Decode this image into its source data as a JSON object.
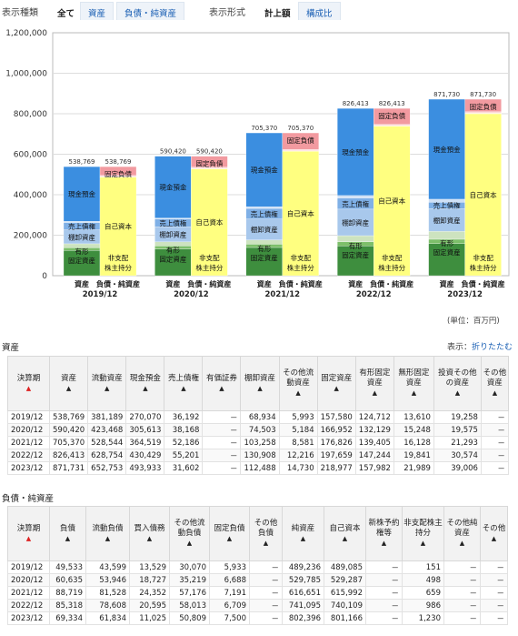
{
  "topbar": {
    "kind_label": "表示種類",
    "kind_tabs": [
      "全て",
      "資産",
      "負債・純資産"
    ],
    "format_label": "表示形式",
    "format_tabs": [
      "計上額",
      "構成比"
    ]
  },
  "unit_label": "(単位：百万円)",
  "chart_data": {
    "type": "bar",
    "subtype": "stacked",
    "ylim": [
      0,
      1200000
    ],
    "yticks": [
      "0",
      "200,000",
      "400,000",
      "600,000",
      "800,000",
      "1,000,000",
      "1,200,000"
    ],
    "bar_labels": [
      "資産",
      "負債・純資産"
    ],
    "periods": [
      "2019/12",
      "2020/12",
      "2021/12",
      "2022/12",
      "2023/12"
    ],
    "totals": [
      "538,769",
      "590,420",
      "705,370",
      "826,413",
      "871,730"
    ],
    "asset_series": [
      {
        "name": "有形固定資産",
        "values": [
          124712,
          132129,
          139405,
          147244,
          157982
        ],
        "color": "#3e8e3e"
      },
      {
        "name": "無形固定資産",
        "values": [
          13610,
          15248,
          16128,
          19841,
          21989
        ],
        "color": "#7dbf6a"
      },
      {
        "name": "投資その他の資産",
        "values": [
          19258,
          19575,
          21293,
          30574,
          39006
        ],
        "color": "#cde3bf"
      },
      {
        "name": "棚卸資産",
        "values": [
          68934,
          74503,
          103258,
          130908,
          112488
        ],
        "color": "#a8c8ec"
      },
      {
        "name": "売上債権",
        "values": [
          36192,
          38168,
          52186,
          55201,
          31602
        ],
        "color": "#7fb0e6"
      },
      {
        "name": "その他流動資産",
        "values": [
          5993,
          5184,
          8581,
          12216,
          14730
        ],
        "color": "#cfe0f5"
      },
      {
        "name": "現金預金",
        "values": [
          270070,
          305613,
          364519,
          430429,
          493933
        ],
        "color": "#3b8ee0"
      }
    ],
    "liab_series": [
      {
        "name": "自己資本",
        "values": [
          489085,
          529287,
          615992,
          740109,
          801166
        ],
        "color": "#ffff80"
      },
      {
        "name": "非支配株主持分",
        "values": [
          151,
          498,
          659,
          986,
          1230
        ],
        "color": "#fffdd0"
      },
      {
        "name": "固定負債",
        "values": [
          5933,
          6688,
          7191,
          6709,
          7500
        ],
        "color": "#ffd9d9"
      },
      {
        "name": "流動負債",
        "values": [
          43599,
          53946,
          81528,
          78608,
          61834
        ],
        "color": "#f29aa0"
      }
    ],
    "asset_labels": [
      "現金預金",
      "売上債権",
      "棚卸資産",
      "有形",
      "固定資産"
    ],
    "liab_labels": [
      "固定負債",
      "自己資本",
      "非支配",
      "株主持分"
    ]
  },
  "assets_section": {
    "title": "資産",
    "toggle_prefix": "表示：",
    "toggle_link": "折りたたむ",
    "headers": [
      "決算期",
      "資産",
      "流動資産",
      "現金預金",
      "売上債権",
      "有価証券",
      "棚卸資産",
      "その他流動資産",
      "固定資産",
      "有形固定資産",
      "無形固定資産",
      "投資その他の資産",
      "その他資産"
    ],
    "rows": [
      [
        "2019/12",
        "538,769",
        "381,189",
        "270,070",
        "36,192",
        "－",
        "68,934",
        "5,993",
        "157,580",
        "124,712",
        "13,610",
        "19,258",
        "－"
      ],
      [
        "2020/12",
        "590,420",
        "423,468",
        "305,613",
        "38,168",
        "－",
        "74,503",
        "5,184",
        "166,952",
        "132,129",
        "15,248",
        "19,575",
        "－"
      ],
      [
        "2021/12",
        "705,370",
        "528,544",
        "364,519",
        "52,186",
        "－",
        "103,258",
        "8,581",
        "176,826",
        "139,405",
        "16,128",
        "21,293",
        "－"
      ],
      [
        "2022/12",
        "826,413",
        "628,754",
        "430,429",
        "55,201",
        "－",
        "130,908",
        "12,216",
        "197,659",
        "147,244",
        "19,841",
        "30,574",
        "－"
      ],
      [
        "2023/12",
        "871,731",
        "652,753",
        "493,933",
        "31,602",
        "－",
        "112,488",
        "14,730",
        "218,977",
        "157,982",
        "21,989",
        "39,006",
        "－"
      ]
    ]
  },
  "liab_section": {
    "title": "負債・純資産",
    "headers": [
      "決算期",
      "負債",
      "流動負債",
      "買入債務",
      "その他流動負債",
      "固定負債",
      "その他負債",
      "純資産",
      "自己資本",
      "新株予約権等",
      "非支配株主持分",
      "その他純資産",
      "その他"
    ],
    "rows": [
      [
        "2019/12",
        "49,533",
        "43,599",
        "13,529",
        "30,070",
        "5,933",
        "－",
        "489,236",
        "489,085",
        "－",
        "151",
        "－",
        "－"
      ],
      [
        "2020/12",
        "60,635",
        "53,946",
        "18,727",
        "35,219",
        "6,688",
        "－",
        "529,785",
        "529,287",
        "－",
        "498",
        "－",
        "－"
      ],
      [
        "2021/12",
        "88,719",
        "81,528",
        "24,352",
        "57,176",
        "7,191",
        "－",
        "616,651",
        "615,992",
        "－",
        "659",
        "－",
        "－"
      ],
      [
        "2022/12",
        "85,318",
        "78,608",
        "20,595",
        "58,013",
        "6,709",
        "－",
        "741,095",
        "740,109",
        "－",
        "986",
        "－",
        "－"
      ],
      [
        "2023/12",
        "69,334",
        "61,834",
        "11,025",
        "50,809",
        "7,500",
        "－",
        "802,396",
        "801,166",
        "－",
        "1,230",
        "－",
        "－"
      ]
    ]
  }
}
